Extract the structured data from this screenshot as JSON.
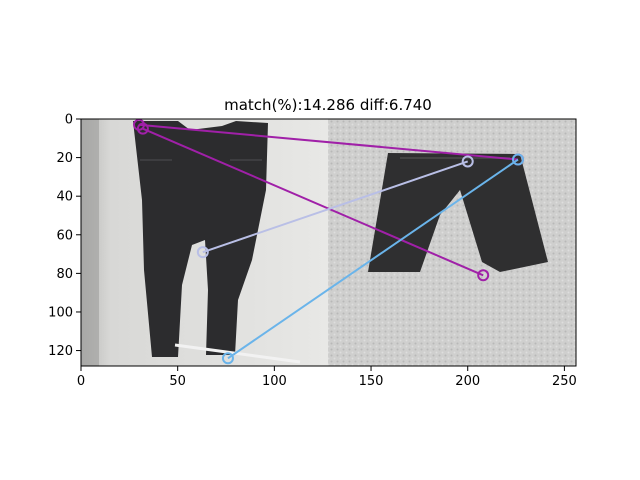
{
  "chart_data": {
    "type": "scatter",
    "title": "match(%):14.286 diff:6.740",
    "xlabel": "",
    "ylabel": "",
    "xlim": [
      0,
      256
    ],
    "ylim": [
      128,
      0
    ],
    "x_ticks": [
      0,
      50,
      100,
      150,
      200,
      250
    ],
    "y_ticks": [
      0,
      20,
      40,
      60,
      80,
      100,
      120
    ],
    "grid": false,
    "background": {
      "left_image": "black jeans on light wall",
      "right_image": "black denim shorts on grey carpet"
    },
    "matches": [
      {
        "x1": 30,
        "y1": 3,
        "x2": 226,
        "y2": 21,
        "color": "#a020a8"
      },
      {
        "x1": 32,
        "y1": 5,
        "x2": 208,
        "y2": 81,
        "color": "#a020a8"
      },
      {
        "x1": 63,
        "y1": 69,
        "x2": 200,
        "y2": 22,
        "color": "#b9bfe6"
      },
      {
        "x1": 76,
        "y1": 124,
        "x2": 226,
        "y2": 21,
        "color": "#6ab4ea"
      }
    ]
  }
}
